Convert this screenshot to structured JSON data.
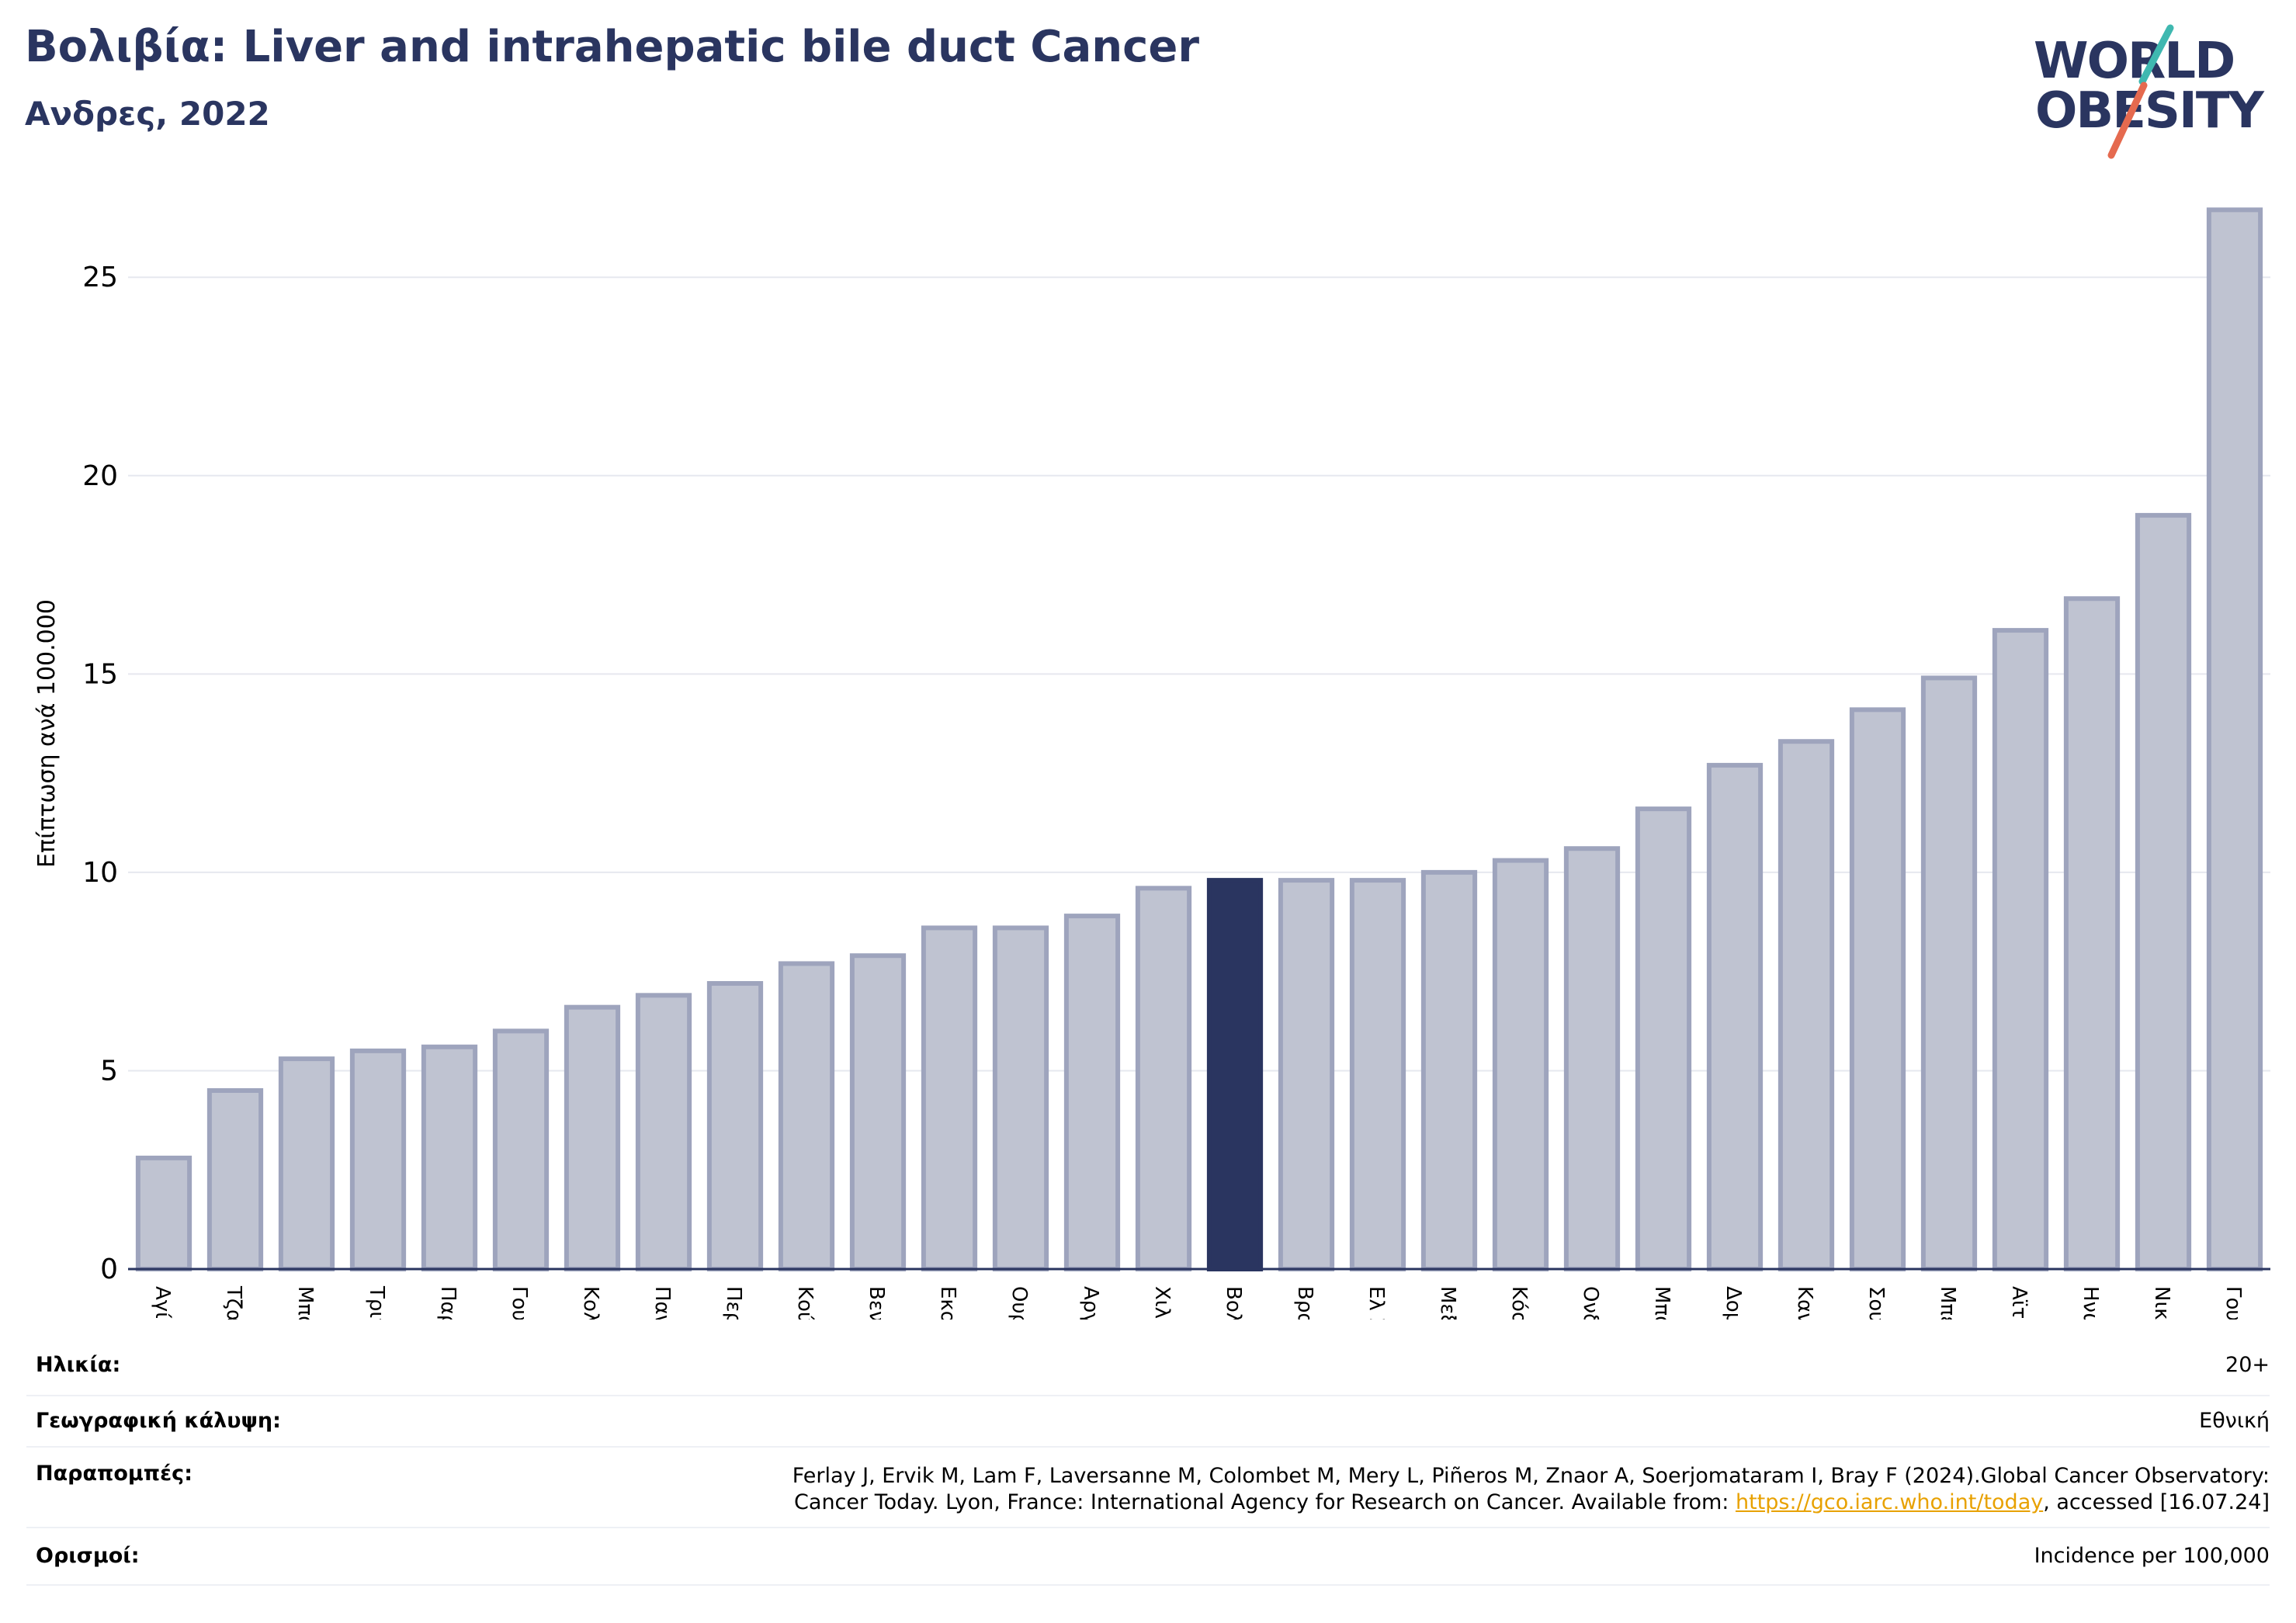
{
  "header": {
    "title": "Βολιβία: Liver and intrahepatic bile duct Cancer",
    "subtitle": "Ανδρες, 2022"
  },
  "logo": {
    "line1": "WORLD",
    "line2": "OBESITY",
    "slash_color_top": "#3fb8b0",
    "slash_color_bottom": "#e56a4f"
  },
  "colors": {
    "bar": "#bfc3d1",
    "bar_stroke": "#9ea4bd",
    "highlight": "#2a3560",
    "title": "#2a3560",
    "grid": "#e6e8ef",
    "axis": "#2a3560"
  },
  "chart_data": {
    "type": "bar",
    "ylabel": "Επίπτωση ανά 100.000",
    "xlabel": "",
    "ylim": [
      0,
      27
    ],
    "yticks": [
      0,
      5,
      10,
      15,
      20,
      25
    ],
    "grid": true,
    "highlight": "Βολιβία",
    "categories": [
      "Αγία Λουκία",
      "Τζαμάικα",
      "Μπαρμπάντος",
      "Τρινιντάντ και Τομπάγκο",
      "Παραγουάη",
      "Γουιάνα",
      "Κολομβία",
      "Παναμάς",
      "Περού",
      "Κούβα",
      "Βενεζουέλα",
      "Εκουαδόρ",
      "Ουρουγουάη",
      "Αργεντινή",
      "Χιλή",
      "Βολιβία",
      "Βραζιλία",
      "Ελ Σαλβαδόρ",
      "Μεξικό",
      "Κόστα Ρίκα",
      "Ονδούρα",
      "Μπαχάμες",
      "Δομινικανή Δημοκρατία",
      "Καναδάς",
      "Σουρινάμ",
      "Μπελίζ",
      "Αϊτή",
      "Ηνωμένες Πολιτείες",
      "Νικαράγουα",
      "Γουατεμάλα"
    ],
    "values": [
      2.8,
      4.5,
      5.3,
      5.5,
      5.6,
      6.0,
      6.6,
      6.9,
      7.2,
      7.7,
      7.9,
      8.6,
      8.6,
      8.9,
      9.6,
      9.8,
      9.8,
      9.8,
      10.0,
      10.3,
      10.6,
      11.6,
      12.7,
      13.3,
      14.1,
      14.9,
      16.1,
      16.9,
      19.0,
      26.7
    ]
  },
  "meta": {
    "age_label": "Ηλικία:",
    "age_value": "20+",
    "coverage_label": "Γεωγραφική κάλυψη:",
    "coverage_value": "Εθνική",
    "refs_label": "Παραπομπές:",
    "refs_line1": "Ferlay J, Ervik M, Lam F, Laversanne M, Colombet M, Mery L, Piñeros M, Znaor A, Soerjomataram I, Bray F (2024).Global Cancer Observatory:",
    "refs_line2_pre": "Cancer Today. Lyon, France: International Agency for Research on Cancer. Available from: ",
    "refs_link": "https://gco.iarc.who.int/today",
    "refs_line2_post": ", accessed [16.07.24]",
    "def_label": "Ορισμοί:",
    "def_value": "Incidence per 100,000"
  }
}
